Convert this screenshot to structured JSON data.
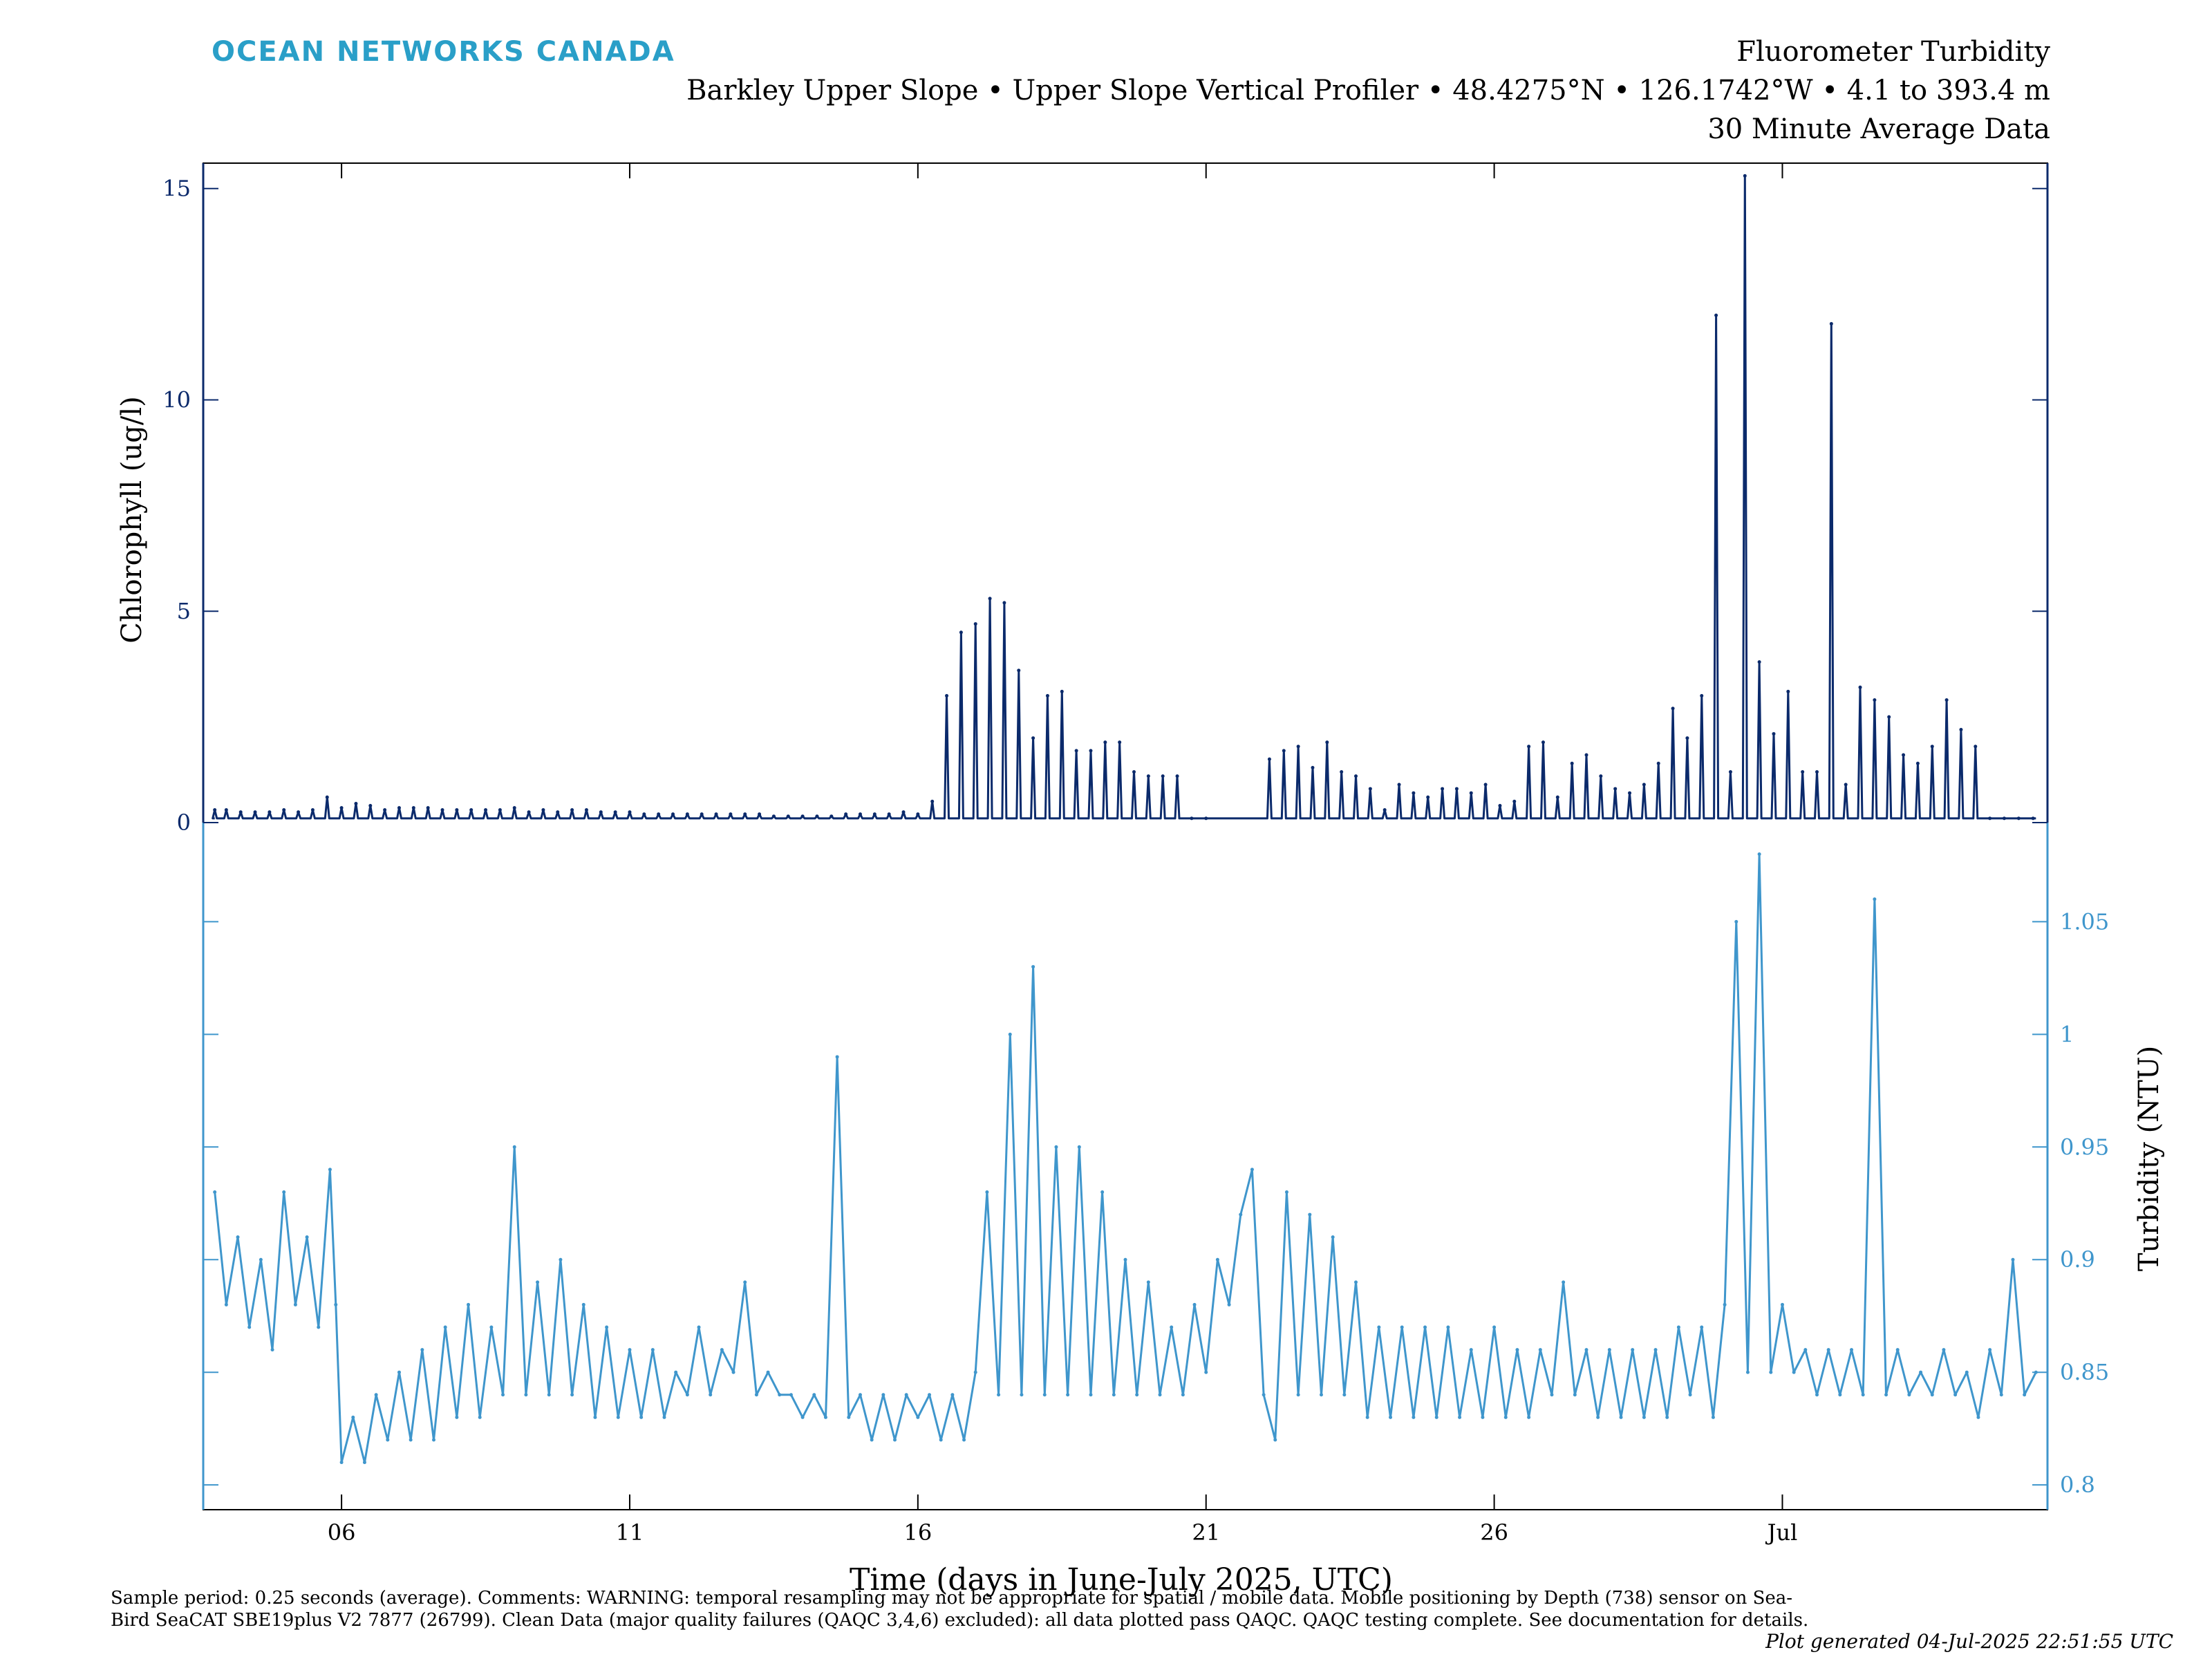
{
  "logo": "OCEAN NETWORKS CANADA",
  "header": {
    "title": "Fluorometer Turbidity",
    "subtitle": "Barkley Upper Slope • Upper Slope Vertical Profiler • 48.4275°N • 126.1742°W • 4.1 to 393.4 m",
    "averaging": "30 Minute Average Data"
  },
  "footer": {
    "notes": "Sample period: 0.25 seconds (average). Comments: WARNING: temporal resampling may not be appropriate for spatial / mobile data. Mobile positioning by Depth (738) sensor on Sea-Bird SeaCAT SBE19plus V2 7877 (26799). Clean Data (major quality failures (QAQC 3,4,6) excluded): all data plotted pass QAQC. QAQC testing complete. See documentation for details.",
    "generated": "Plot generated 04-Jul-2025 22:51:55 UTC"
  },
  "colors": {
    "chlorophyll": "#0b2a6b",
    "turbidity": "#3f96cc",
    "logo": "#2a9fc8"
  },
  "chart_data": [
    {
      "type": "line",
      "panel": "top",
      "xlabel": "Time (days in June-July 2025, UTC)",
      "ylabel": "Chlorophyll (ug/l)",
      "xlim": [
        3.6,
        35.6
      ],
      "ylim": [
        0,
        15.6
      ],
      "yticks": [
        0,
        5,
        10,
        15
      ],
      "grid": false,
      "baseline": 0.1,
      "series": [
        {
          "name": "",
          "spikes_x": [
            3.8,
            4.0,
            4.25,
            4.5,
            4.75,
            5.0,
            5.25,
            5.5,
            5.75,
            6.0,
            6.25,
            6.5,
            6.75,
            7.0,
            7.25,
            7.5,
            7.75,
            8.0,
            8.25,
            8.5,
            8.75,
            9.0,
            9.25,
            9.5,
            9.75,
            10.0,
            10.25,
            10.5,
            10.75,
            11.0,
            11.25,
            11.5,
            11.75,
            12.0,
            12.25,
            12.5,
            12.75,
            13.0,
            13.25,
            13.5,
            13.75,
            14.0,
            14.25,
            14.5,
            14.75,
            15.0,
            15.25,
            15.5,
            15.75,
            16.0,
            16.25,
            16.5,
            16.75,
            17.0,
            17.25,
            17.5,
            17.75,
            18.0,
            18.25,
            18.5,
            18.75,
            19.0,
            19.25,
            19.5,
            19.75,
            20.0,
            20.25,
            20.5,
            20.75,
            21.0,
            22.1,
            22.35,
            22.6,
            22.85,
            23.1,
            23.35,
            23.6,
            23.85,
            24.1,
            24.35,
            24.6,
            24.85,
            25.1,
            25.35,
            25.6,
            25.85,
            26.1,
            26.35,
            26.6,
            26.85,
            27.1,
            27.35,
            27.6,
            27.85,
            28.1,
            28.35,
            28.6,
            28.85,
            29.1,
            29.35,
            29.6,
            29.85,
            30.1,
            30.35,
            30.6,
            30.85,
            31.1,
            31.35,
            31.6,
            31.85,
            32.1,
            32.35,
            32.6,
            32.85,
            33.1,
            33.35,
            33.6,
            33.85,
            34.1,
            34.35,
            34.6,
            34.85,
            35.1,
            35.35
          ],
          "spikes_y": [
            0.3,
            0.3,
            0.25,
            0.25,
            0.25,
            0.3,
            0.25,
            0.3,
            0.6,
            0.35,
            0.45,
            0.4,
            0.3,
            0.35,
            0.35,
            0.35,
            0.3,
            0.3,
            0.3,
            0.3,
            0.3,
            0.35,
            0.25,
            0.3,
            0.25,
            0.3,
            0.3,
            0.25,
            0.25,
            0.25,
            0.2,
            0.2,
            0.2,
            0.2,
            0.2,
            0.2,
            0.2,
            0.2,
            0.2,
            0.15,
            0.15,
            0.15,
            0.15,
            0.15,
            0.2,
            0.2,
            0.2,
            0.2,
            0.25,
            0.2,
            0.5,
            3.0,
            4.5,
            4.7,
            5.3,
            5.2,
            3.6,
            2.0,
            3.0,
            3.1,
            1.7,
            1.7,
            1.9,
            1.9,
            1.2,
            1.1,
            1.1,
            1.1,
            0.1,
            0.1,
            1.5,
            1.7,
            1.8,
            1.3,
            1.9,
            1.2,
            1.1,
            0.8,
            0.3,
            0.9,
            0.7,
            0.6,
            0.8,
            0.8,
            0.7,
            0.9,
            0.4,
            0.5,
            1.8,
            1.9,
            0.6,
            1.4,
            1.6,
            1.1,
            0.8,
            0.7,
            0.9,
            1.4,
            2.7,
            2.0,
            3.0,
            12.0,
            1.2,
            15.3,
            3.8,
            2.1,
            3.1,
            1.2,
            1.2,
            11.8,
            0.9,
            3.2,
            2.9,
            2.5,
            1.6,
            1.4,
            1.8,
            2.9,
            2.2,
            1.8,
            0.1,
            0.1,
            0.1,
            0.1
          ]
        }
      ]
    },
    {
      "type": "line",
      "panel": "bottom",
      "xlabel": "Time (days in June-July 2025, UTC)",
      "ylabel": "Turbidity (NTU)",
      "xlim": [
        3.6,
        35.6
      ],
      "ylim": [
        0.789,
        1.094
      ],
      "yticks": [
        0.8,
        0.85,
        0.9,
        0.95,
        1,
        1.05
      ],
      "ytick_labels": [
        "0.8",
        "0.85",
        "0.9",
        "0.95",
        "1",
        "1.05"
      ],
      "grid": false,
      "series": [
        {
          "name": "",
          "x": [
            3.8,
            4.0,
            4.2,
            4.4,
            4.6,
            4.8,
            5.0,
            5.2,
            5.4,
            5.6,
            5.8,
            5.9,
            6.0,
            6.2,
            6.4,
            6.6,
            6.8,
            7.0,
            7.2,
            7.4,
            7.6,
            7.8,
            8.0,
            8.2,
            8.4,
            8.6,
            8.8,
            9.0,
            9.2,
            9.4,
            9.6,
            9.8,
            10.0,
            10.2,
            10.4,
            10.6,
            10.8,
            11.0,
            11.2,
            11.4,
            11.6,
            11.8,
            12.0,
            12.2,
            12.4,
            12.6,
            12.8,
            13.0,
            13.2,
            13.4,
            13.6,
            13.8,
            14.0,
            14.2,
            14.4,
            14.6,
            14.8,
            15.0,
            15.2,
            15.4,
            15.6,
            15.8,
            16.0,
            16.2,
            16.4,
            16.6,
            16.8,
            17.0,
            17.2,
            17.4,
            17.6,
            17.8,
            18.0,
            18.2,
            18.4,
            18.6,
            18.8,
            19.0,
            19.2,
            19.4,
            19.6,
            19.8,
            20.0,
            20.2,
            20.4,
            20.6,
            20.8,
            21.0,
            21.2,
            21.4,
            21.6,
            21.8,
            22.0,
            22.2,
            22.4,
            22.6,
            22.8,
            23.0,
            23.2,
            23.4,
            23.6,
            23.8,
            24.0,
            24.2,
            24.4,
            24.6,
            24.8,
            25.0,
            25.2,
            25.4,
            25.6,
            25.8,
            26.0,
            26.2,
            26.4,
            26.6,
            26.8,
            27.0,
            27.2,
            27.4,
            27.6,
            27.8,
            28.0,
            28.2,
            28.4,
            28.6,
            28.8,
            29.0,
            29.2,
            29.4,
            29.6,
            29.8,
            30.0,
            30.2,
            30.4,
            30.6,
            30.8,
            31.0,
            31.2,
            31.4,
            31.6,
            31.8,
            32.0,
            32.2,
            32.4,
            32.6,
            32.8,
            33.0,
            33.2,
            33.4,
            33.6,
            33.8,
            34.0,
            34.2,
            34.4,
            34.6,
            34.8,
            35.0,
            35.2,
            35.4
          ],
          "y": [
            0.93,
            0.88,
            0.91,
            0.87,
            0.9,
            0.86,
            0.93,
            0.88,
            0.91,
            0.87,
            0.94,
            0.88,
            0.81,
            0.83,
            0.81,
            0.84,
            0.82,
            0.85,
            0.82,
            0.86,
            0.82,
            0.87,
            0.83,
            0.88,
            0.83,
            0.87,
            0.84,
            0.95,
            0.84,
            0.89,
            0.84,
            0.9,
            0.84,
            0.88,
            0.83,
            0.87,
            0.83,
            0.86,
            0.83,
            0.86,
            0.83,
            0.85,
            0.84,
            0.87,
            0.84,
            0.86,
            0.85,
            0.89,
            0.84,
            0.85,
            0.84,
            0.84,
            0.83,
            0.84,
            0.83,
            0.99,
            0.83,
            0.84,
            0.82,
            0.84,
            0.82,
            0.84,
            0.83,
            0.84,
            0.82,
            0.84,
            0.82,
            0.85,
            0.93,
            0.84,
            1.0,
            0.84,
            1.03,
            0.84,
            0.95,
            0.84,
            0.95,
            0.84,
            0.93,
            0.84,
            0.9,
            0.84,
            0.89,
            0.84,
            0.87,
            0.84,
            0.88,
            0.85,
            0.9,
            0.88,
            0.92,
            0.94,
            0.84,
            0.82,
            0.93,
            0.84,
            0.92,
            0.84,
            0.91,
            0.84,
            0.89,
            0.83,
            0.87,
            0.83,
            0.87,
            0.83,
            0.87,
            0.83,
            0.87,
            0.83,
            0.86,
            0.83,
            0.87,
            0.83,
            0.86,
            0.83,
            0.86,
            0.84,
            0.89,
            0.84,
            0.86,
            0.83,
            0.86,
            0.83,
            0.86,
            0.83,
            0.86,
            0.83,
            0.87,
            0.84,
            0.87,
            0.83,
            0.88,
            1.05,
            0.85,
            1.08,
            0.85,
            0.88,
            0.85,
            0.86,
            0.84,
            0.86,
            0.84,
            0.86,
            0.84,
            1.06,
            0.84,
            0.86,
            0.84,
            0.85,
            0.84,
            0.86,
            0.84,
            0.85,
            0.83,
            0.86,
            0.84,
            0.9,
            0.84,
            0.85
          ]
        }
      ]
    }
  ],
  "x_axis": {
    "ticks": [
      6,
      11,
      16,
      21,
      26,
      31
    ],
    "tick_labels": [
      "06",
      "11",
      "16",
      "21",
      "26",
      "Jul"
    ]
  }
}
